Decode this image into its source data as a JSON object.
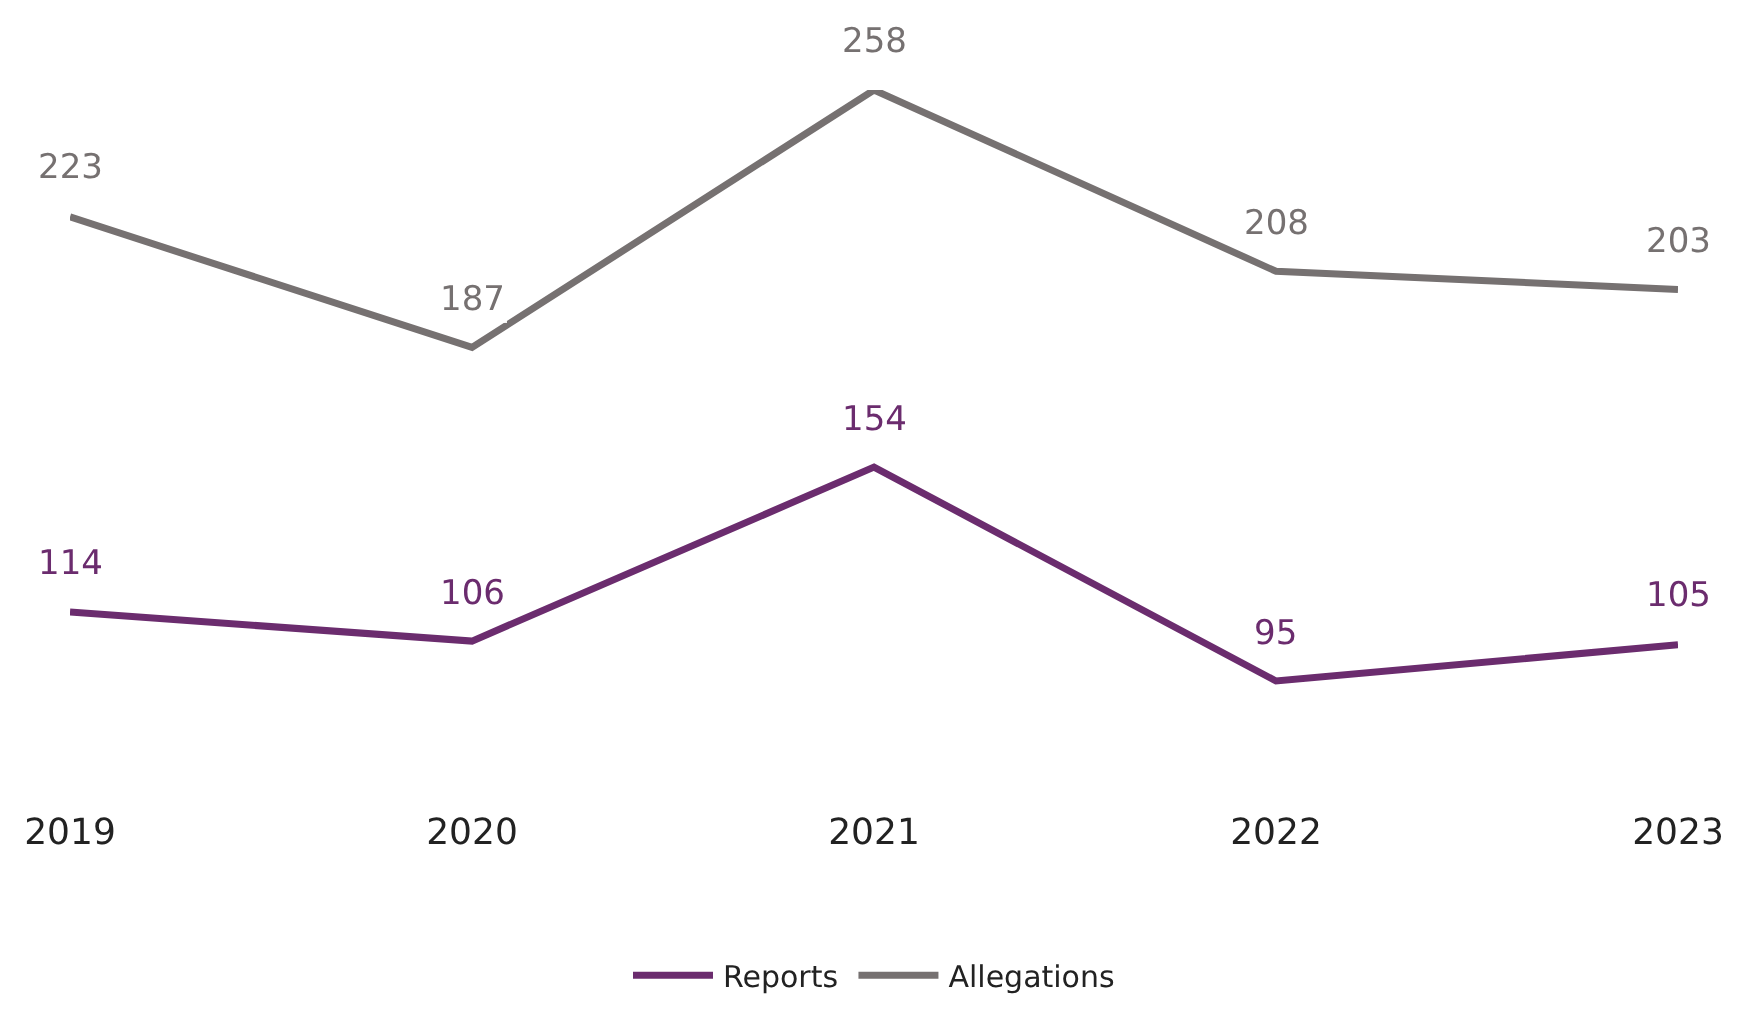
{
  "chart_data": {
    "type": "line",
    "categories": [
      "2019",
      "2020",
      "2021",
      "2022",
      "2023"
    ],
    "series": [
      {
        "name": "Reports",
        "color": "#6b2c6e",
        "values": [
          114,
          106,
          154,
          95,
          105
        ]
      },
      {
        "name": "Allegations",
        "color": "#767171",
        "values": [
          223,
          187,
          258,
          208,
          203
        ]
      }
    ],
    "data_labels": true,
    "legend": "bottom",
    "marker": "none",
    "line_style": "solid"
  }
}
